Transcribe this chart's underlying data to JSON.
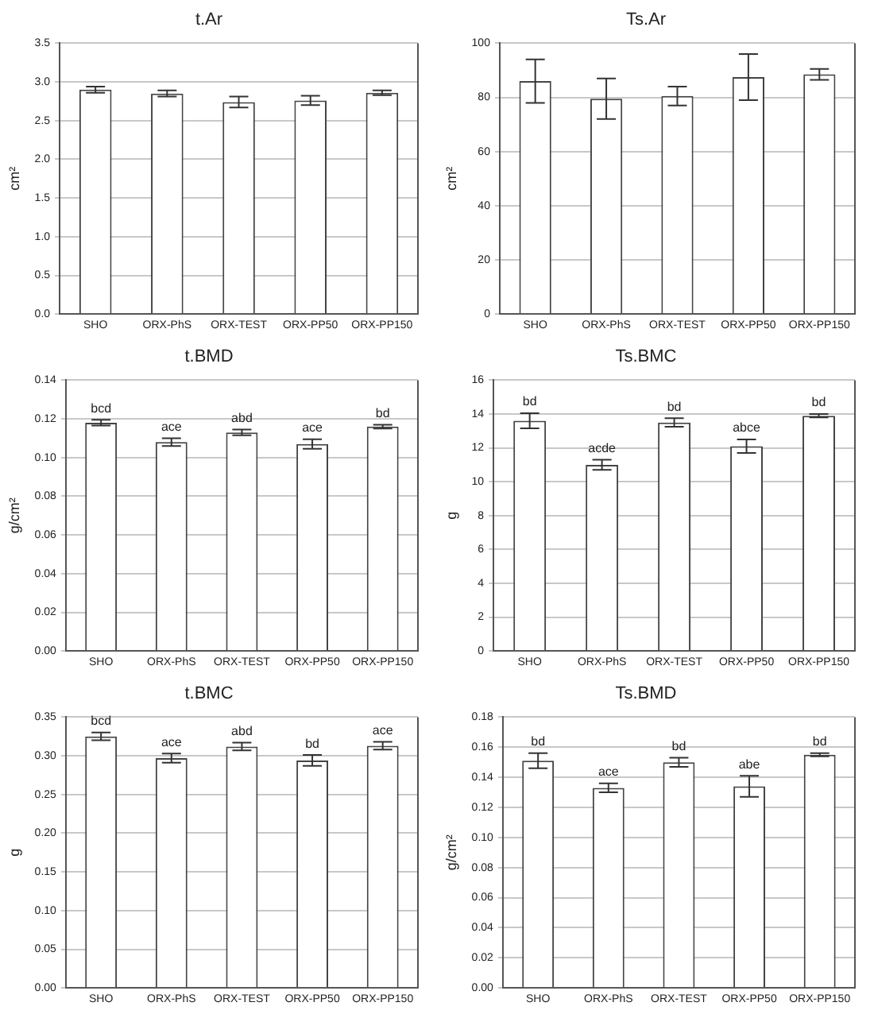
{
  "chart_data": [
    {
      "type": "bar",
      "title": "t.Ar",
      "ylabel": "cm²",
      "categories": [
        "SHO",
        "ORX-PhS",
        "ORX-TEST",
        "ORX-PP50",
        "ORX-PP150"
      ],
      "values": [
        2.9,
        2.85,
        2.74,
        2.76,
        2.86
      ],
      "errors": [
        0.04,
        0.04,
        0.07,
        0.06,
        0.03
      ],
      "color": "#ffffff",
      "ylim": [
        0,
        3.5
      ],
      "yticks": [
        {
          "value": 0,
          "label": "0.0"
        },
        0.5,
        {
          "value": 1,
          "label": "1.0"
        },
        1.5,
        {
          "value": 2,
          "label": "2.0"
        },
        2.5,
        {
          "value": 3,
          "label": "3.0"
        },
        3.5
      ],
      "grid": "y"
    },
    {
      "type": "bar",
      "title": "Ts.Ar",
      "ylabel": "cm²",
      "categories": [
        "SHO",
        "ORX-PhS",
        "ORX-TEST",
        "ORX-PP50",
        "ORX-PP150"
      ],
      "values": [
        86,
        79.5,
        80.5,
        87.5,
        88.5
      ],
      "errors": [
        8,
        7.5,
        3.5,
        8.5,
        2
      ],
      "color": "#ffffff",
      "ylim": [
        0,
        100
      ],
      "yticks": [
        0,
        20,
        40,
        60,
        80,
        100
      ],
      "grid": "y"
    },
    {
      "type": "bar",
      "title": "t.BMD",
      "ylabel": "g/cm²",
      "categories": [
        "SHO",
        "ORX-PhS",
        "ORX-TEST",
        "ORX-PP50",
        "ORX-PP150"
      ],
      "values": [
        0.118,
        0.108,
        0.113,
        0.107,
        0.116
      ],
      "errors": [
        0.0015,
        0.002,
        0.0015,
        0.0025,
        0.001
      ],
      "color": "#ffffff",
      "ylim": [
        0,
        0.14
      ],
      "yticks": [
        {
          "value": 0,
          "label": "0.00"
        },
        0.02,
        0.04,
        0.06,
        0.08,
        {
          "value": 0.1,
          "label": "0.10"
        },
        0.12,
        0.14
      ],
      "grid": "y",
      "annotations": [
        {
          "text": "bcd",
          "x": "SHO",
          "y": 0.1195
        },
        {
          "text": "ace",
          "x": "ORX-PhS",
          "y": 0.11
        },
        {
          "text": "abd",
          "x": "ORX-TEST",
          "y": 0.1145
        },
        {
          "text": "ace",
          "x": "ORX-PP50",
          "y": 0.1095
        },
        {
          "text": "bd",
          "x": "ORX-PP150",
          "y": 0.117
        }
      ]
    },
    {
      "type": "bar",
      "title": "Ts.BMC",
      "ylabel": "g",
      "categories": [
        "SHO",
        "ORX-PhS",
        "ORX-TEST",
        "ORX-PP50",
        "ORX-PP150"
      ],
      "values": [
        13.6,
        11,
        13.5,
        12.1,
        13.9
      ],
      "errors": [
        0.45,
        0.3,
        0.25,
        0.4,
        0.1
      ],
      "color": "#ffffff",
      "ylim": [
        0,
        16
      ],
      "yticks": [
        0,
        2,
        4,
        6,
        8,
        10,
        12,
        14,
        16
      ],
      "grid": "y",
      "annotations": [
        {
          "text": "bd",
          "x": "SHO",
          "y": 14.05
        },
        {
          "text": "acde",
          "x": "ORX-PhS",
          "y": 11.3
        },
        {
          "text": "bd",
          "x": "ORX-TEST",
          "y": 13.75
        },
        {
          "text": "abce",
          "x": "ORX-PP50",
          "y": 12.5
        },
        {
          "text": "bd",
          "x": "ORX-PP150",
          "y": 14
        }
      ]
    },
    {
      "type": "bar",
      "title": "t.BMC",
      "ylabel": "g",
      "categories": [
        "SHO",
        "ORX-PhS",
        "ORX-TEST",
        "ORX-PP50",
        "ORX-PP150"
      ],
      "values": [
        0.325,
        0.297,
        0.312,
        0.294,
        0.313
      ],
      "errors": [
        0.005,
        0.006,
        0.005,
        0.007,
        0.005
      ],
      "color": "#ffffff",
      "ylim": [
        0,
        0.35
      ],
      "yticks": [
        {
          "value": 0,
          "label": "0.00"
        },
        0.05,
        {
          "value": 0.1,
          "label": "0.10"
        },
        0.15,
        {
          "value": 0.2,
          "label": "0.20"
        },
        0.25,
        {
          "value": 0.3,
          "label": "0.30"
        },
        0.35
      ],
      "grid": "y",
      "annotations": [
        {
          "text": "bcd",
          "x": "SHO",
          "y": 0.33
        },
        {
          "text": "ace",
          "x": "ORX-PhS",
          "y": 0.303
        },
        {
          "text": "abd",
          "x": "ORX-TEST",
          "y": 0.317
        },
        {
          "text": "bd",
          "x": "ORX-PP50",
          "y": 0.301
        },
        {
          "text": "ace",
          "x": "ORX-PP150",
          "y": 0.318
        }
      ]
    },
    {
      "type": "bar",
      "title": "Ts.BMD",
      "ylabel": "g/cm²",
      "categories": [
        "SHO",
        "ORX-PhS",
        "ORX-TEST",
        "ORX-PP50",
        "ORX-PP150"
      ],
      "values": [
        0.151,
        0.133,
        0.15,
        0.134,
        0.155
      ],
      "errors": [
        0.005,
        0.003,
        0.003,
        0.007,
        0.001
      ],
      "color": "#ffffff",
      "ylim": [
        0,
        0.18
      ],
      "yticks": [
        {
          "value": 0,
          "label": "0.00"
        },
        0.02,
        0.04,
        0.06,
        0.08,
        {
          "value": 0.1,
          "label": "0.10"
        },
        0.12,
        0.14,
        0.16,
        0.18
      ],
      "grid": "y",
      "annotations": [
        {
          "text": "bd",
          "x": "SHO",
          "y": 0.156
        },
        {
          "text": "ace",
          "x": "ORX-PhS",
          "y": 0.136
        },
        {
          "text": "bd",
          "x": "ORX-TEST",
          "y": 0.153
        },
        {
          "text": "abe",
          "x": "ORX-PP50",
          "y": 0.141
        },
        {
          "text": "bd",
          "x": "ORX-PP150",
          "y": 0.156
        }
      ]
    }
  ]
}
